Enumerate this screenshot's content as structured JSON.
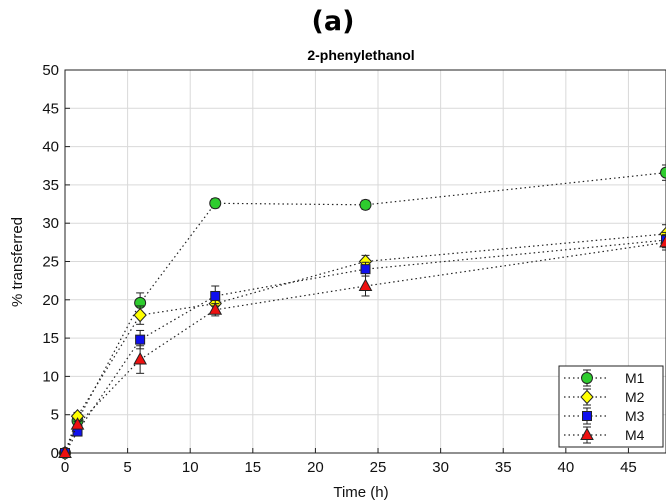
{
  "panel_label": "(a)",
  "chart_data": {
    "type": "line",
    "title": "2-phenylethanol",
    "xlabel": "Time (h)",
    "ylabel": "% transferred",
    "xlim": [
      0,
      48
    ],
    "ylim": [
      0,
      50
    ],
    "xticks": [
      0,
      5,
      10,
      15,
      20,
      25,
      30,
      35,
      40,
      45
    ],
    "yticks": [
      0,
      5,
      10,
      15,
      20,
      25,
      30,
      35,
      40,
      45,
      50
    ],
    "grid": true,
    "legend_position": "bottom-right",
    "x": [
      0,
      1,
      6,
      12,
      24,
      48
    ],
    "series": [
      {
        "name": "M1",
        "marker": "circle",
        "color": "#2ecc2e",
        "values": [
          0,
          4.2,
          19.6,
          32.6,
          32.4,
          36.6
        ],
        "errors": [
          0,
          0.4,
          1.3,
          0.6,
          0.6,
          1.0
        ]
      },
      {
        "name": "M2",
        "marker": "diamond",
        "color": "#ffff00",
        "values": [
          0,
          4.8,
          18.0,
          19.5,
          25.0,
          28.6
        ],
        "errors": [
          0,
          0.5,
          1.2,
          1.0,
          0.8,
          1.2
        ]
      },
      {
        "name": "M3",
        "marker": "square",
        "color": "#1010ee",
        "values": [
          0,
          2.8,
          14.8,
          20.5,
          24.0,
          27.8
        ],
        "errors": [
          0,
          0.3,
          1.2,
          1.3,
          0.9,
          1.0
        ]
      },
      {
        "name": "M4",
        "marker": "triangle",
        "color": "#ee1010",
        "values": [
          0,
          3.7,
          12.2,
          18.7,
          21.8,
          27.5
        ],
        "errors": [
          0,
          0.4,
          1.8,
          0.8,
          1.3,
          1.0
        ]
      }
    ]
  }
}
